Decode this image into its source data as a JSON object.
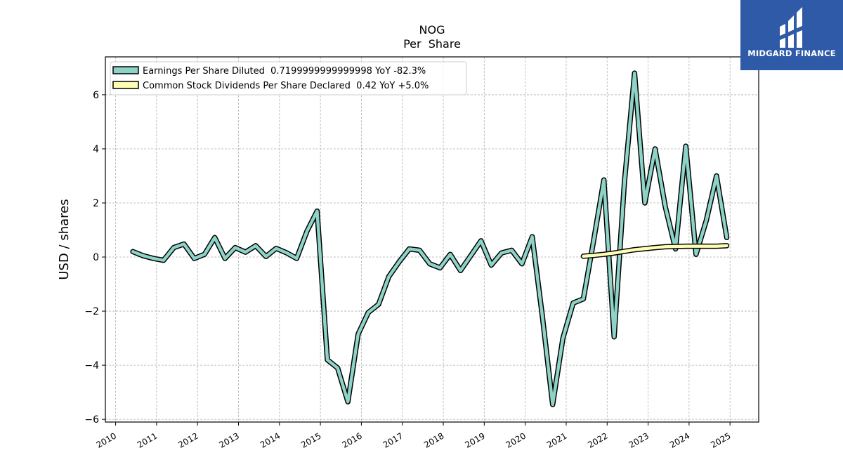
{
  "brand": {
    "name": "MIDGARD FINANCE",
    "bg_color": "#2f5aa8"
  },
  "chart_data": {
    "type": "line",
    "title": "NOG",
    "subtitle": "Per  Share",
    "ylabel": "USD / shares",
    "xlabel": "",
    "xlim": [
      2009.75,
      2025.7
    ],
    "ylim": [
      -6.1,
      7.4
    ],
    "yticks": [
      -6,
      -4,
      -2,
      0,
      2,
      4,
      6
    ],
    "ytick_labels": [
      "−6",
      "−4",
      "−2",
      "0",
      "2",
      "4",
      "6"
    ],
    "xticks": [
      2010,
      2011,
      2012,
      2013,
      2014,
      2015,
      2016,
      2017,
      2018,
      2019,
      2020,
      2021,
      2022,
      2023,
      2024,
      2025
    ],
    "xtick_labels": [
      "2010",
      "2011",
      "2012",
      "2013",
      "2014",
      "2015",
      "2016",
      "2017",
      "2018",
      "2019",
      "2020",
      "2021",
      "2022",
      "2023",
      "2024",
      "2025"
    ],
    "grid": true,
    "legend_position": "top-left",
    "series": [
      {
        "name": "Earnings Per Share Diluted  0.7199999999999998 YoY -82.3%",
        "color": "#8dd3c7",
        "x": [
          2010.42,
          2010.67,
          2010.92,
          2011.17,
          2011.42,
          2011.67,
          2011.92,
          2012.17,
          2012.42,
          2012.67,
          2012.92,
          2013.17,
          2013.42,
          2013.67,
          2013.92,
          2014.17,
          2014.42,
          2014.67,
          2014.92,
          2015.17,
          2015.42,
          2015.67,
          2015.92,
          2016.17,
          2016.42,
          2016.67,
          2016.92,
          2017.17,
          2017.42,
          2017.67,
          2017.92,
          2018.17,
          2018.42,
          2018.67,
          2018.92,
          2019.17,
          2019.42,
          2019.67,
          2019.92,
          2020.17,
          2020.42,
          2020.67,
          2020.92,
          2021.17,
          2021.42,
          2021.67,
          2021.92,
          2022.17,
          2022.42,
          2022.67,
          2022.92,
          2023.17,
          2023.42,
          2023.67,
          2023.92,
          2024.17,
          2024.42,
          2024.67,
          2024.92
        ],
        "y": [
          0.2,
          0.05,
          -0.05,
          -0.12,
          0.35,
          0.48,
          -0.05,
          0.1,
          0.72,
          -0.05,
          0.35,
          0.18,
          0.42,
          0.02,
          0.32,
          0.16,
          -0.05,
          0.95,
          1.7,
          -3.8,
          -4.1,
          -5.35,
          -2.85,
          -2.05,
          -1.75,
          -0.72,
          -0.18,
          0.3,
          0.25,
          -0.25,
          -0.4,
          0.1,
          -0.5,
          0.05,
          0.6,
          -0.3,
          0.15,
          0.25,
          -0.25,
          0.75,
          -2.2,
          -5.45,
          -3.0,
          -1.7,
          -1.55,
          0.6,
          2.85,
          -2.95,
          2.75,
          6.8,
          2.0,
          4.0,
          1.85,
          0.3,
          4.1,
          0.1,
          1.35,
          3.0,
          0.72
        ]
      },
      {
        "name": "Common Stock Dividends Per Share Declared  0.42 YoY +5.0%",
        "color": "#ffffb3",
        "x": [
          2021.42,
          2021.67,
          2021.92,
          2022.17,
          2022.42,
          2022.67,
          2022.92,
          2023.17,
          2023.42,
          2023.67,
          2023.92,
          2024.17,
          2024.42,
          2024.67,
          2024.92
        ],
        "y": [
          0.03,
          0.06,
          0.1,
          0.15,
          0.21,
          0.27,
          0.31,
          0.35,
          0.38,
          0.39,
          0.4,
          0.4,
          0.4,
          0.4,
          0.42
        ]
      }
    ]
  }
}
